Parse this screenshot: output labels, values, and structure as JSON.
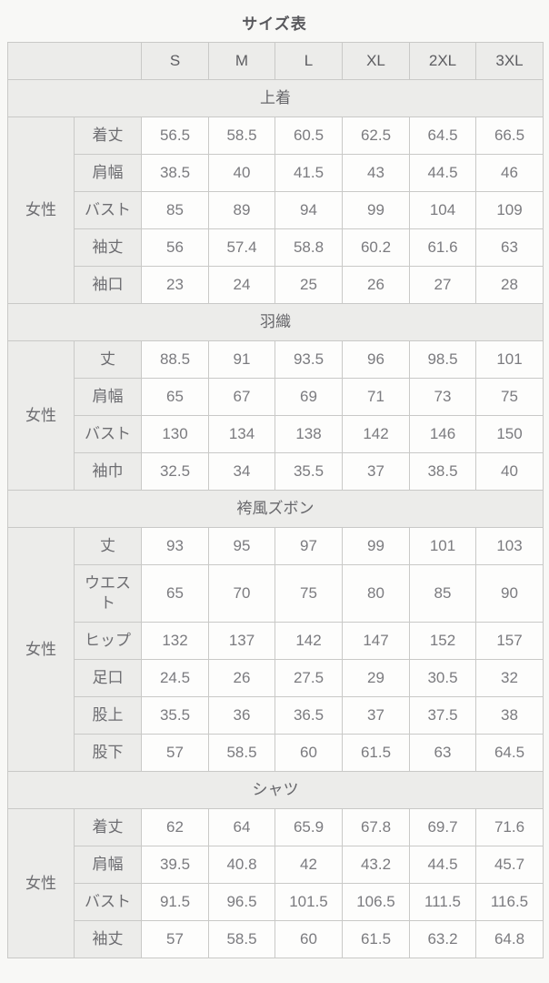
{
  "page": {
    "title": "サイズ表"
  },
  "table": {
    "gender_label": "女性",
    "size_headers": [
      "S",
      "M",
      "L",
      "XL",
      "2XL",
      "3XL"
    ],
    "sections": [
      {
        "name": "上着",
        "rows": [
          {
            "label": "着丈",
            "values": [
              "56.5",
              "58.5",
              "60.5",
              "62.5",
              "64.5",
              "66.5"
            ]
          },
          {
            "label": "肩幅",
            "values": [
              "38.5",
              "40",
              "41.5",
              "43",
              "44.5",
              "46"
            ]
          },
          {
            "label": "バスト",
            "values": [
              "85",
              "89",
              "94",
              "99",
              "104",
              "109"
            ]
          },
          {
            "label": "袖丈",
            "values": [
              "56",
              "57.4",
              "58.8",
              "60.2",
              "61.6",
              "63"
            ]
          },
          {
            "label": "袖口",
            "values": [
              "23",
              "24",
              "25",
              "26",
              "27",
              "28"
            ]
          }
        ]
      },
      {
        "name": "羽織",
        "rows": [
          {
            "label": "丈",
            "values": [
              "88.5",
              "91",
              "93.5",
              "96",
              "98.5",
              "101"
            ]
          },
          {
            "label": "肩幅",
            "values": [
              "65",
              "67",
              "69",
              "71",
              "73",
              "75"
            ]
          },
          {
            "label": "バスト",
            "values": [
              "130",
              "134",
              "138",
              "142",
              "146",
              "150"
            ]
          },
          {
            "label": "袖巾",
            "values": [
              "32.5",
              "34",
              "35.5",
              "37",
              "38.5",
              "40"
            ]
          }
        ]
      },
      {
        "name": "袴風ズボン",
        "rows": [
          {
            "label": "丈",
            "values": [
              "93",
              "95",
              "97",
              "99",
              "101",
              "103"
            ]
          },
          {
            "label": "ウエスト",
            "values": [
              "65",
              "70",
              "75",
              "80",
              "85",
              "90"
            ]
          },
          {
            "label": "ヒップ",
            "values": [
              "132",
              "137",
              "142",
              "147",
              "152",
              "157"
            ]
          },
          {
            "label": "足口",
            "values": [
              "24.5",
              "26",
              "27.5",
              "29",
              "30.5",
              "32"
            ]
          },
          {
            "label": "股上",
            "values": [
              "35.5",
              "36",
              "36.5",
              "37",
              "37.5",
              "38"
            ]
          },
          {
            "label": "股下",
            "values": [
              "57",
              "58.5",
              "60",
              "61.5",
              "63",
              "64.5"
            ]
          }
        ]
      },
      {
        "name": "シャツ",
        "rows": [
          {
            "label": "着丈",
            "values": [
              "62",
              "64",
              "65.9",
              "67.8",
              "69.7",
              "71.6"
            ]
          },
          {
            "label": "肩幅",
            "values": [
              "39.5",
              "40.8",
              "42",
              "43.2",
              "44.5",
              "45.7"
            ]
          },
          {
            "label": "バスト",
            "values": [
              "91.5",
              "96.5",
              "101.5",
              "106.5",
              "111.5",
              "116.5"
            ]
          },
          {
            "label": "袖丈",
            "values": [
              "57",
              "58.5",
              "60",
              "61.5",
              "63.2",
              "64.8"
            ]
          }
        ]
      }
    ]
  }
}
